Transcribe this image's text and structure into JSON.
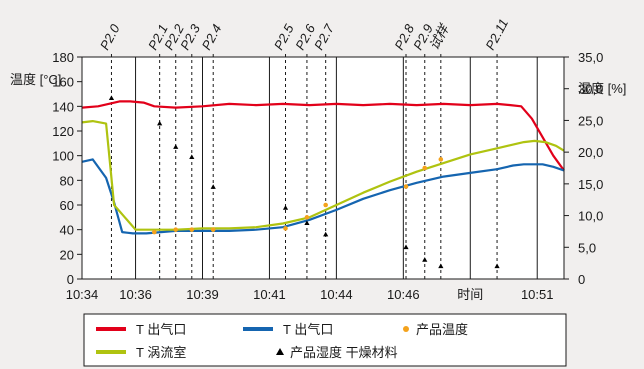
{
  "chart_data": {
    "type": "line",
    "left_axis": {
      "title": "温度 [°C]",
      "ylim": [
        0,
        180
      ],
      "ticks": [
        "0",
        "20",
        "40",
        "60",
        "80",
        "100",
        "120",
        "140",
        "160",
        "180"
      ]
    },
    "right_axis": {
      "title": "湿度  [%]",
      "ylim": [
        0,
        35
      ],
      "ticks": [
        "0",
        "5,0",
        "10,0",
        "15,0",
        "20,0",
        "25,0",
        "30,0",
        "35,0"
      ]
    },
    "x_axis": {
      "xlim": [
        "10:34",
        "10:52"
      ],
      "ticks": [
        {
          "at": "10:34",
          "label": "10:34"
        },
        {
          "at": "10:36",
          "label": "10:36"
        },
        {
          "at": "10:38:30",
          "label": "10:39"
        },
        {
          "at": "10:41",
          "label": "10:41"
        },
        {
          "at": "10:43:30",
          "label": "10:44"
        },
        {
          "at": "10:46",
          "label": "10:46"
        },
        {
          "at": "10:48:30",
          "label": "时间"
        },
        {
          "at": "10:51",
          "label": "10:51"
        }
      ]
    },
    "grid": {
      "vertical": true,
      "horizontal": false
    },
    "phase_markers": [
      {
        "label": "P2.0",
        "at": "10:35:06"
      },
      {
        "label": "P2.1",
        "at": "10:36:54"
      },
      {
        "label": "P2.2",
        "at": "10:37:30"
      },
      {
        "label": "P2.3",
        "at": "10:38:06"
      },
      {
        "label": "P2.4",
        "at": "10:38:54"
      },
      {
        "label": "P2.5",
        "at": "10:41:36"
      },
      {
        "label": "P2.6",
        "at": "10:42:24"
      },
      {
        "label": "P2.7",
        "at": "10:43:06"
      },
      {
        "label": "P2.8",
        "at": "10:46:06"
      },
      {
        "label": "P2.9",
        "at": "10:46:48"
      },
      {
        "label": "试样",
        "at": "10:47:24"
      },
      {
        "label": "P2.11",
        "at": "10:49:30"
      }
    ],
    "series": [
      {
        "name": "T 出气口",
        "axis": "left",
        "color": "#e2001a",
        "style": "line",
        "x": [
          "10:34:00",
          "10:34:36",
          "10:35:24",
          "10:35:48",
          "10:36:18",
          "10:36:42",
          "10:37:30",
          "10:38:30",
          "10:39:30",
          "10:40:30",
          "10:41:30",
          "10:42:30",
          "10:43:30",
          "10:44:30",
          "10:45:30",
          "10:46:30",
          "10:47:30",
          "10:48:30",
          "10:49:30",
          "10:50:00",
          "10:50:24",
          "10:50:48",
          "10:51:12",
          "10:51:36",
          "10:52:00"
        ],
        "values": [
          139,
          140,
          144,
          144,
          143,
          140,
          139,
          140,
          142,
          141,
          142,
          141,
          142,
          141,
          142,
          141,
          142,
          141,
          142,
          141,
          140,
          130,
          115,
          100,
          88
        ]
      },
      {
        "name": "T 出气口",
        "axis": "left",
        "color": "#1565b0",
        "style": "line",
        "x": [
          "10:34:00",
          "10:34:24",
          "10:34:54",
          "10:35:12",
          "10:35:30",
          "10:35:54",
          "10:36:24",
          "10:37:30",
          "10:38:30",
          "10:39:30",
          "10:40:30",
          "10:41:30",
          "10:42:30",
          "10:43:30",
          "10:44:30",
          "10:45:30",
          "10:46:30",
          "10:47:30",
          "10:48:30",
          "10:49:30",
          "10:50:06",
          "10:50:30",
          "10:51:12",
          "10:51:36",
          "10:52:00"
        ],
        "values": [
          95,
          97,
          82,
          62,
          38,
          37,
          37,
          39,
          39,
          39,
          40,
          42,
          48,
          56,
          65,
          72,
          78,
          83,
          86,
          89,
          92,
          93,
          93,
          91,
          88
        ]
      },
      {
        "name": "T 涡流室",
        "axis": "left",
        "color": "#afc310",
        "style": "line",
        "x": [
          "10:34:00",
          "10:34:24",
          "10:34:54",
          "10:35:12",
          "10:35:36",
          "10:36:00",
          "10:36:30",
          "10:37:30",
          "10:38:30",
          "10:39:30",
          "10:40:30",
          "10:41:30",
          "10:42:30",
          "10:43:30",
          "10:44:30",
          "10:45:30",
          "10:46:30",
          "10:47:30",
          "10:48:30",
          "10:49:30",
          "10:50:06",
          "10:50:30",
          "10:50:54",
          "10:51:18",
          "10:51:42",
          "10:52:00"
        ],
        "values": [
          127,
          128,
          126,
          60,
          50,
          40,
          40,
          40,
          41,
          41,
          42,
          45,
          50,
          60,
          70,
          79,
          87,
          94,
          101,
          106,
          109,
          111,
          112,
          111,
          108,
          104
        ]
      },
      {
        "name": "产品温度",
        "axis": "left",
        "color": "#f4a21c",
        "style": "dots",
        "x": [
          "10:36:42",
          "10:37:30",
          "10:38:06",
          "10:38:54",
          "10:41:36",
          "10:42:24",
          "10:43:06",
          "10:46:06",
          "10:46:48",
          "10:47:24"
        ],
        "values": [
          38,
          40,
          40,
          40,
          41,
          50,
          60,
          75,
          90,
          97
        ]
      },
      {
        "name": "产品湿度 干燥材料",
        "axis": "right",
        "color": "#000000",
        "style": "triangles",
        "x": [
          "10:35:06",
          "10:36:54",
          "10:37:30",
          "10:38:06",
          "10:38:54",
          "10:41:36",
          "10:42:24",
          "10:43:06",
          "10:46:06",
          "10:46:48",
          "10:47:24",
          "10:49:30"
        ],
        "values": [
          28.5,
          24.5,
          20.8,
          19.2,
          14.5,
          11.2,
          8.8,
          7.0,
          5.0,
          3.0,
          2.0,
          2.0
        ]
      }
    ],
    "legend": {
      "placement": "bottom",
      "items": [
        {
          "label": "T 出气口",
          "kind": "line",
          "color": "#e2001a"
        },
        {
          "label": "T 出气口",
          "kind": "line",
          "color": "#1565b0"
        },
        {
          "label": "产品温度",
          "kind": "dot",
          "color": "#f4a21c"
        },
        {
          "label": "T 涡流室",
          "kind": "line",
          "color": "#afc310"
        },
        {
          "label": "产品湿度 干燥材料",
          "kind": "triangle",
          "color": "#000000"
        }
      ]
    }
  }
}
